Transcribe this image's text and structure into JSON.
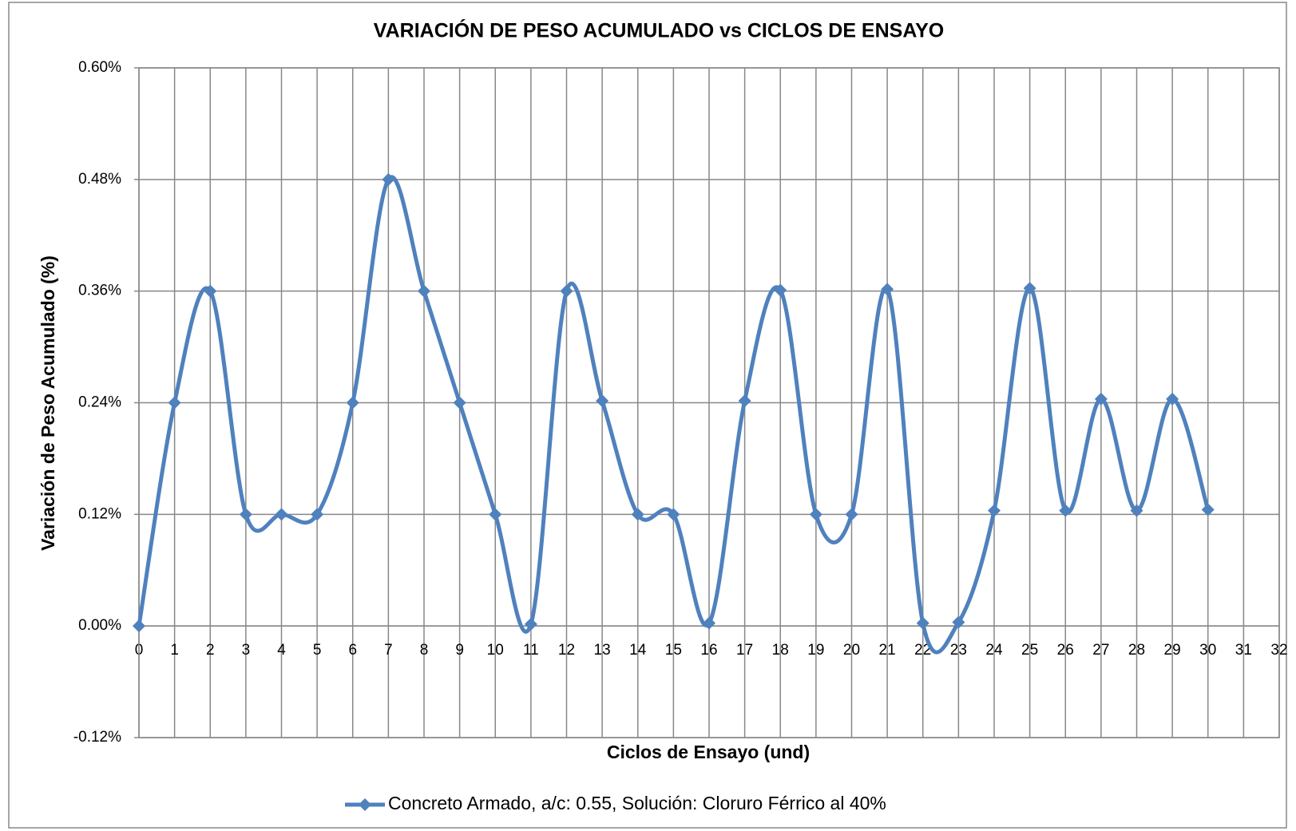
{
  "chart_data": {
    "type": "line",
    "title": "VARIACIÓN DE PESO ACUMULADO vs CICLOS DE ENSAYO",
    "x_label": "Ciclos de Ensayo (und)",
    "y_label": "Variación de Peso Acumulado (%)",
    "x": [
      0,
      1,
      2,
      3,
      4,
      5,
      6,
      7,
      8,
      9,
      10,
      11,
      12,
      13,
      14,
      15,
      16,
      17,
      18,
      19,
      20,
      21,
      22,
      23,
      24,
      25,
      26,
      27,
      28,
      29,
      30
    ],
    "series": [
      {
        "name": "Concreto Armado, a/c: 0.55, Solución: Cloruro Férrico al 40%",
        "color": "#4f81bd",
        "values": [
          0,
          0.24,
          0.36,
          0.12,
          0.12,
          0.12,
          0.24,
          0.48,
          0.36,
          0.24,
          0.12,
          0.002,
          0.36,
          0.242,
          0.12,
          0.12,
          0.003,
          0.242,
          0.361,
          0.12,
          0.12,
          0.362,
          0.003,
          0.004,
          0.124,
          0.363,
          0.124,
          0.244,
          0.124,
          0.244,
          0.125
        ]
      }
    ],
    "xlim": [
      0,
      32
    ],
    "xticks": [
      0,
      1,
      2,
      3,
      4,
      5,
      6,
      7,
      8,
      9,
      10,
      11,
      12,
      13,
      14,
      15,
      16,
      17,
      18,
      19,
      20,
      21,
      22,
      23,
      24,
      25,
      26,
      27,
      28,
      29,
      30,
      31,
      32
    ],
    "ylim": [
      -0.12,
      0.6
    ],
    "yticks": [
      {
        "value": -0.12,
        "label": "-0.12%"
      },
      {
        "value": 0,
        "label": "0.00%"
      },
      {
        "value": 0.12,
        "label": "0.12%"
      },
      {
        "value": 0.24,
        "label": "0.24%"
      },
      {
        "value": 0.36,
        "label": "0.36%"
      },
      {
        "value": 0.48,
        "label": "0.48%"
      },
      {
        "value": 0.6,
        "label": "0.60%"
      }
    ],
    "grid": true,
    "smooth": true,
    "legend": "bottom"
  }
}
